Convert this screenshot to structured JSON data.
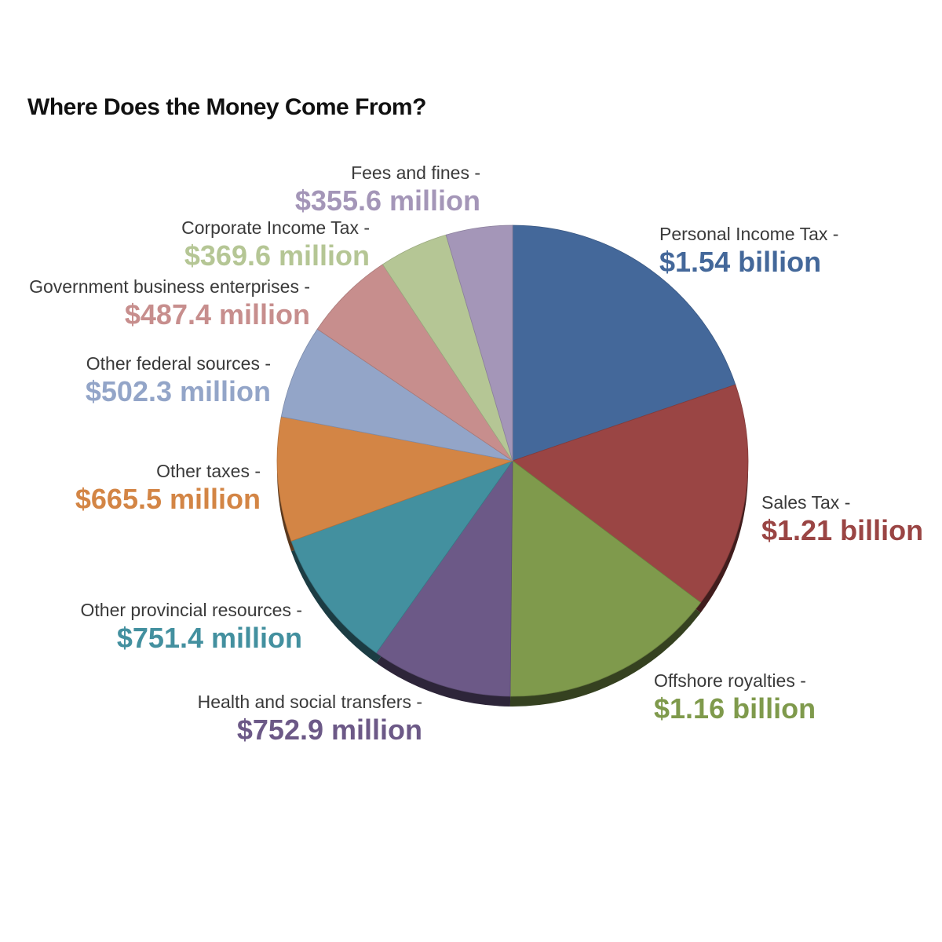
{
  "chart_data": {
    "type": "pie",
    "title": "Where Does the Money Come From?",
    "slices": [
      {
        "label": "Personal Income Tax -",
        "display": "$1.54 billion",
        "value": 1540,
        "color": "#44689a"
      },
      {
        "label": "Sales Tax -",
        "display": "$1.21 billion",
        "value": 1210,
        "color": "#9a4544"
      },
      {
        "label": "Offshore royalties -",
        "display": "$1.16 billion",
        "value": 1160,
        "color": "#7f9a4c"
      },
      {
        "label": "Health and social transfers -",
        "display": "$752.9 million",
        "value": 752.9,
        "color": "#6c5987"
      },
      {
        "label": "Other provincial resources -",
        "display": "$751.4 million",
        "value": 751.4,
        "color": "#43909f"
      },
      {
        "label": "Other taxes -",
        "display": "$665.5 million",
        "value": 665.5,
        "color": "#d38545"
      },
      {
        "label": "Other federal sources -",
        "display": "$502.3 million",
        "value": 502.3,
        "color": "#93a5c8"
      },
      {
        "label": "Government business enterprises -",
        "display": "$487.4 million",
        "value": 487.4,
        "color": "#c78e8d"
      },
      {
        "label": "Corporate Income Tax -",
        "display": "$369.6 million",
        "value": 369.6,
        "color": "#b5c695"
      },
      {
        "label": "Fees and fines -",
        "display": "$355.6 million",
        "value": 355.6,
        "color": "#a496b8"
      }
    ]
  }
}
